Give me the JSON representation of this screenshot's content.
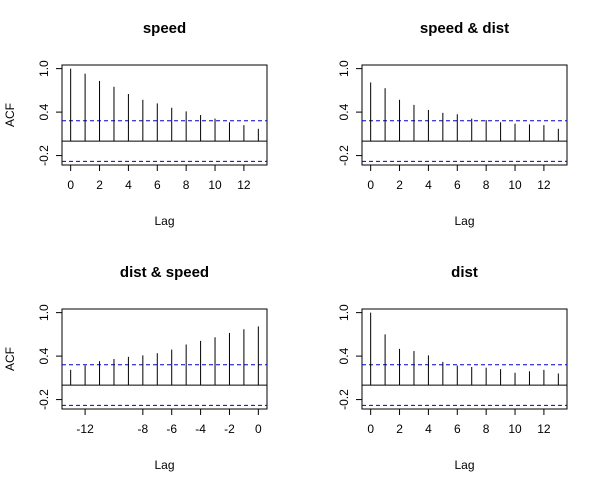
{
  "chart_data": [
    {
      "type": "bar",
      "title": "speed",
      "xlabel": "Lag",
      "ylabel": "ACF",
      "lags": [
        0,
        1,
        2,
        3,
        4,
        5,
        6,
        7,
        8,
        9,
        10,
        11,
        12,
        13
      ],
      "values": [
        1.0,
        0.93,
        0.83,
        0.75,
        0.65,
        0.57,
        0.52,
        0.46,
        0.41,
        0.36,
        0.31,
        0.26,
        0.22,
        0.17
      ],
      "xlim": [
        -0.6,
        13.6
      ],
      "ylim": [
        -0.33,
        1.05
      ],
      "xticks": [
        0,
        2,
        4,
        6,
        8,
        10,
        12
      ],
      "yticks": [
        "-0.2",
        "0.4",
        "1.0"
      ],
      "conf_limit": 0.28
    },
    {
      "type": "bar",
      "title": "speed & dist",
      "xlabel": "Lag",
      "ylabel": "",
      "lags": [
        0,
        1,
        2,
        3,
        4,
        5,
        6,
        7,
        8,
        9,
        10,
        11,
        12,
        13
      ],
      "values": [
        0.81,
        0.73,
        0.57,
        0.5,
        0.43,
        0.39,
        0.37,
        0.31,
        0.29,
        0.26,
        0.24,
        0.23,
        0.22,
        0.17
      ],
      "xlim": [
        -0.6,
        13.6
      ],
      "ylim": [
        -0.33,
        1.05
      ],
      "xticks": [
        0,
        2,
        4,
        6,
        8,
        10,
        12
      ],
      "yticks": [
        "-0.2",
        "0.4",
        "1.0"
      ],
      "conf_limit": 0.28
    },
    {
      "type": "bar",
      "title": "dist & speed",
      "xlabel": "Lag",
      "ylabel": "ACF",
      "lags": [
        -13,
        -12,
        -11,
        -10,
        -9,
        -8,
        -7,
        -6,
        -5,
        -4,
        -3,
        -2,
        -1,
        0
      ],
      "values": [
        0.21,
        0.27,
        0.33,
        0.36,
        0.39,
        0.41,
        0.44,
        0.49,
        0.56,
        0.61,
        0.66,
        0.72,
        0.77,
        0.81
      ],
      "xlim": [
        -13.6,
        0.6
      ],
      "ylim": [
        -0.33,
        1.05
      ],
      "xticks": [
        -12,
        -8,
        -6,
        -4,
        -2,
        0
      ],
      "yticks": [
        "-0.2",
        "0.4",
        "1.0"
      ],
      "conf_limit": 0.28
    },
    {
      "type": "bar",
      "title": "dist",
      "xlabel": "Lag",
      "ylabel": "",
      "lags": [
        0,
        1,
        2,
        3,
        4,
        5,
        6,
        7,
        8,
        9,
        10,
        11,
        12,
        13
      ],
      "values": [
        1.0,
        0.7,
        0.5,
        0.47,
        0.41,
        0.32,
        0.27,
        0.25,
        0.24,
        0.22,
        0.17,
        0.19,
        0.21,
        0.16
      ],
      "xlim": [
        -0.6,
        13.6
      ],
      "ylim": [
        -0.33,
        1.05
      ],
      "xticks": [
        0,
        2,
        4,
        6,
        8,
        10,
        12
      ],
      "yticks": [
        "-0.2",
        "0.4",
        "1.0"
      ],
      "conf_limit": 0.28
    }
  ],
  "colors": {
    "bars": "#000000",
    "conf_line": "#0000cd",
    "frame": "#000000"
  }
}
